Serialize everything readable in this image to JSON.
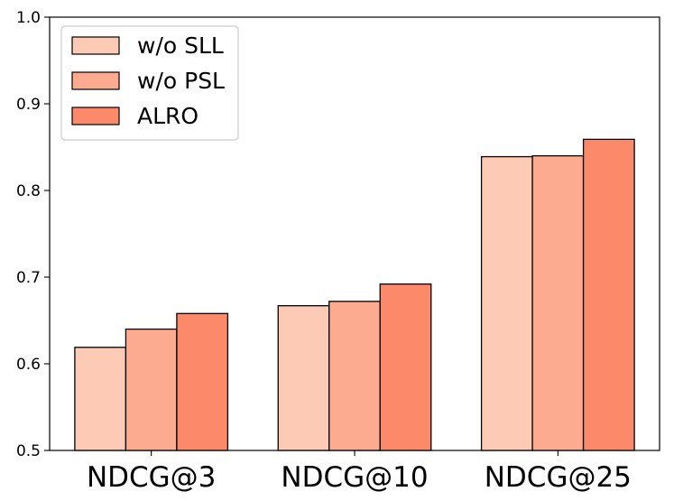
{
  "chart_data": {
    "type": "bar",
    "title": "",
    "xlabel": "",
    "ylabel": "",
    "categories": [
      "NDCG@3",
      "NDCG@10",
      "NDCG@25"
    ],
    "series": [
      {
        "name": "w/o SLL",
        "values": [
          0.619,
          0.667,
          0.839
        ],
        "color": "#fdcab5"
      },
      {
        "name": "w/o PSL",
        "values": [
          0.64,
          0.672,
          0.84
        ],
        "color": "#fcab90"
      },
      {
        "name": "ALRO",
        "values": [
          0.658,
          0.692,
          0.859
        ],
        "color": "#fc8a6a"
      }
    ],
    "ylim": [
      0.5,
      1.0
    ],
    "yticks": [
      "0.5",
      "0.6",
      "0.7",
      "0.8",
      "0.9",
      "1.0"
    ],
    "grid": false,
    "legend_position": "top-left"
  }
}
